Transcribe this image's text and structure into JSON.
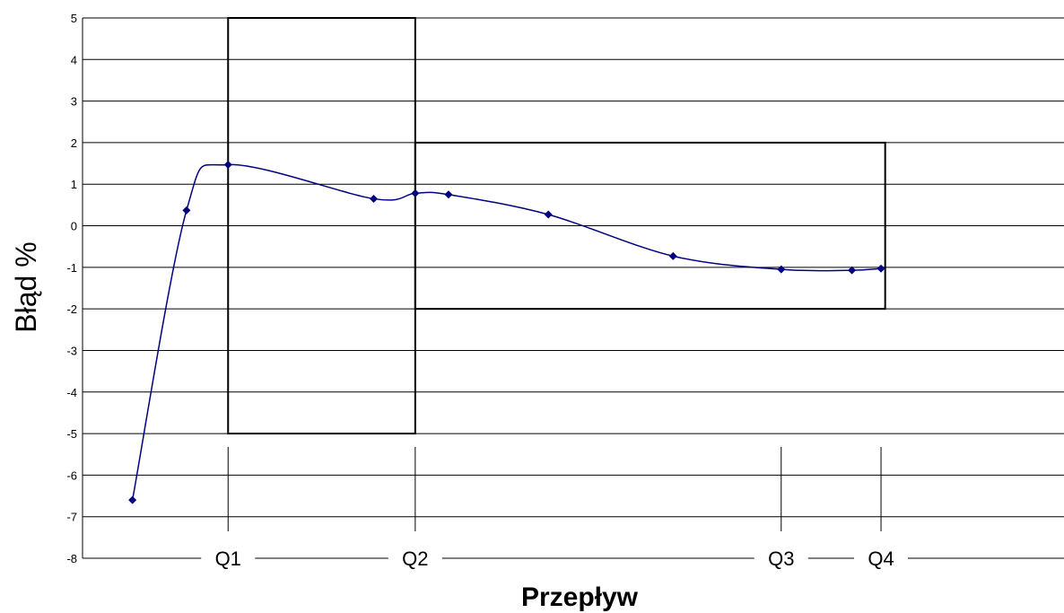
{
  "chart_data": {
    "type": "line",
    "xlabel": "Przepływ",
    "ylabel": "Błąd %",
    "ylim": [
      -8,
      5
    ],
    "y_ticks": [
      "5",
      "4",
      "3",
      "2",
      "1",
      "0",
      "-1",
      "-2",
      "-3",
      "-4",
      "-5",
      "-6",
      "-7",
      "-8"
    ],
    "grid": true,
    "smoothed": true,
    "series": [
      {
        "color": "#000080",
        "points": [
          [
            0.6,
            -6.6
          ],
          [
            1.25,
            0.37
          ],
          [
            1.75,
            1.47
          ],
          [
            3.5,
            0.65
          ],
          [
            4.0,
            0.78
          ],
          [
            4.4,
            0.75
          ],
          [
            5.6,
            0.27
          ],
          [
            7.1,
            -0.73
          ],
          [
            8.4,
            -1.05
          ],
          [
            9.25,
            -1.07
          ],
          [
            9.6,
            -1.03
          ]
        ]
      }
    ],
    "x_markers": [
      {
        "label": "Q1",
        "x": 1.75
      },
      {
        "label": "Q2",
        "x": 4.0
      },
      {
        "label": "Q3",
        "x": 8.4
      },
      {
        "label": "Q4",
        "x": 9.6
      }
    ],
    "tolerance_boxes": [
      {
        "x_from": 1.75,
        "x_to": 4.0,
        "y_min": -5,
        "y_max": 5
      },
      {
        "x_from": 4.0,
        "x_to": 9.65,
        "y_min": -2,
        "y_max": 2
      }
    ]
  }
}
